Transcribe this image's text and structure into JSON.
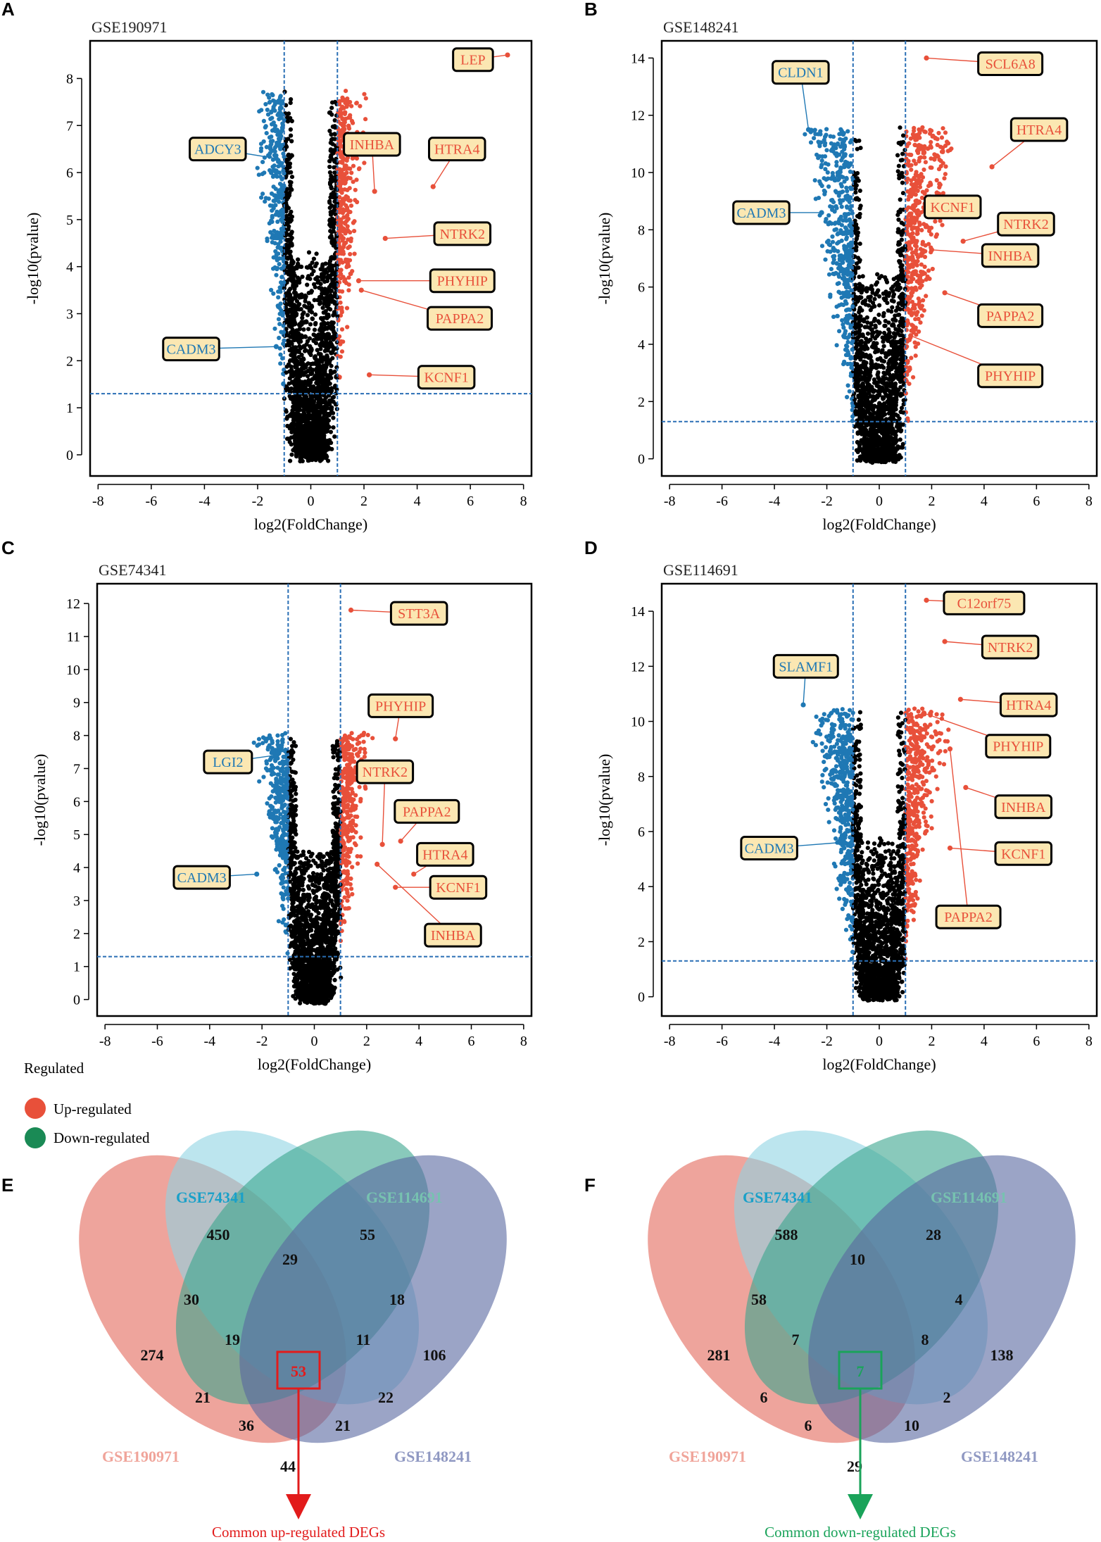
{
  "colors": {
    "up": "#e8503a",
    "down": "#1f78b4",
    "ns": "#000000",
    "threshold": "#2a6fb5",
    "label_fill": "#fbe7b2",
    "legend_up": "#e8503a",
    "legend_down": "#1a8a55",
    "arrow_up": "#e21b1b",
    "arrow_down": "#1aa35a"
  },
  "chart_data": [
    {
      "type": "scatter",
      "panel": "A",
      "title": "GSE190971",
      "xlabel": "log2(FoldChange)",
      "ylabel": "-log10(pvalue)",
      "xlim": [
        -8.3,
        8.3
      ],
      "ylim": [
        -0.45,
        8.8
      ],
      "xticks": [
        -8,
        -6,
        -4,
        -2,
        0,
        2,
        4,
        6,
        8
      ],
      "yticks": [
        0,
        1,
        2,
        3,
        4,
        5,
        6,
        7,
        8
      ],
      "thresholds": {
        "fc": [
          -1,
          1
        ],
        "p": 1.3
      },
      "cloud": {
        "ymax": 7.6,
        "seed": 11
      },
      "genes": [
        {
          "name": "LEP",
          "x": 7.4,
          "y": 8.5,
          "reg": "up",
          "lx": 6.1,
          "ly": 8.4
        },
        {
          "name": "INHBA",
          "x": 2.4,
          "y": 5.6,
          "reg": "up",
          "lx": 2.3,
          "ly": 6.6
        },
        {
          "name": "HTRA4",
          "x": 4.6,
          "y": 5.7,
          "reg": "up",
          "lx": 5.5,
          "ly": 6.5
        },
        {
          "name": "NTRK2",
          "x": 2.8,
          "y": 4.6,
          "reg": "up",
          "lx": 5.7,
          "ly": 4.7
        },
        {
          "name": "PHYHIP",
          "x": 1.8,
          "y": 3.7,
          "reg": "up",
          "lx": 5.7,
          "ly": 3.7
        },
        {
          "name": "PAPPA2",
          "x": 1.9,
          "y": 3.5,
          "reg": "up",
          "lx": 5.6,
          "ly": 2.9
        },
        {
          "name": "KCNF1",
          "x": 2.2,
          "y": 1.7,
          "reg": "up",
          "lx": 5.1,
          "ly": 1.65
        },
        {
          "name": "ADCY3",
          "x": -1.3,
          "y": 6.3,
          "reg": "down",
          "lx": -3.5,
          "ly": 6.5
        },
        {
          "name": "CADM3",
          "x": -1.3,
          "y": 2.3,
          "reg": "down",
          "lx": -4.5,
          "ly": 2.25
        }
      ]
    },
    {
      "type": "scatter",
      "panel": "B",
      "title": "GSE148241",
      "xlabel": "log2(FoldChange)",
      "ylabel": "-log10(pvalue)",
      "xlim": [
        -8.3,
        8.3
      ],
      "ylim": [
        -0.6,
        14.6
      ],
      "xticks": [
        -8,
        -6,
        -4,
        -2,
        0,
        2,
        4,
        6,
        8
      ],
      "yticks": [
        0,
        2,
        4,
        6,
        8,
        10,
        12,
        14
      ],
      "thresholds": {
        "fc": [
          -1,
          1
        ],
        "p": 1.3
      },
      "cloud": {
        "ymax": 11.5,
        "seed": 23
      },
      "genes": [
        {
          "name": "SCL6A8",
          "x": 1.8,
          "y": 14.0,
          "reg": "up",
          "lx": 5.0,
          "ly": 13.8
        },
        {
          "name": "HTRA4",
          "x": 4.3,
          "y": 10.2,
          "reg": "up",
          "lx": 6.1,
          "ly": 11.5
        },
        {
          "name": "KCNF1",
          "x": 1.9,
          "y": 8.5,
          "reg": "up",
          "lx": 2.8,
          "ly": 8.8
        },
        {
          "name": "NTRK2",
          "x": 3.2,
          "y": 7.6,
          "reg": "up",
          "lx": 5.6,
          "ly": 8.2
        },
        {
          "name": "INHBA",
          "x": 2.0,
          "y": 7.3,
          "reg": "up",
          "lx": 5.0,
          "ly": 7.1
        },
        {
          "name": "PAPPA2",
          "x": 2.5,
          "y": 5.8,
          "reg": "up",
          "lx": 5.0,
          "ly": 5.0
        },
        {
          "name": "PHYHIP",
          "x": 1.2,
          "y": 4.3,
          "reg": "up",
          "lx": 5.0,
          "ly": 2.9
        },
        {
          "name": "CLDN1",
          "x": -2.7,
          "y": 11.5,
          "reg": "down",
          "lx": -3.0,
          "ly": 13.5
        },
        {
          "name": "CADM3",
          "x": -2.2,
          "y": 8.6,
          "reg": "down",
          "lx": -4.5,
          "ly": 8.6
        }
      ]
    },
    {
      "type": "scatter",
      "panel": "C",
      "title": "GSE74341",
      "xlabel": "log2(FoldChange)",
      "ylabel": "-log10(pvalue)",
      "xlim": [
        -8.3,
        8.3
      ],
      "ylim": [
        -0.5,
        12.6
      ],
      "xticks": [
        -8,
        -6,
        -4,
        -2,
        0,
        2,
        4,
        6,
        8
      ],
      "yticks": [
        0,
        1,
        2,
        3,
        4,
        5,
        6,
        7,
        8,
        9,
        10,
        11,
        12
      ],
      "thresholds": {
        "fc": [
          -1,
          1
        ],
        "p": 1.3
      },
      "cloud": {
        "ymax": 8.0,
        "seed": 37
      },
      "genes": [
        {
          "name": "STT3A",
          "x": 1.4,
          "y": 11.8,
          "reg": "up",
          "lx": 4.0,
          "ly": 11.7
        },
        {
          "name": "PHYHIP",
          "x": 3.1,
          "y": 7.9,
          "reg": "up",
          "lx": 3.3,
          "ly": 8.9
        },
        {
          "name": "NTRK2",
          "x": 2.6,
          "y": 4.7,
          "reg": "up",
          "lx": 2.7,
          "ly": 6.9
        },
        {
          "name": "PAPPA2",
          "x": 3.3,
          "y": 4.8,
          "reg": "up",
          "lx": 4.3,
          "ly": 5.7
        },
        {
          "name": "HTRA4",
          "x": 3.8,
          "y": 3.8,
          "reg": "up",
          "lx": 5.0,
          "ly": 4.4
        },
        {
          "name": "KCNF1",
          "x": 3.1,
          "y": 3.4,
          "reg": "up",
          "lx": 5.5,
          "ly": 3.4
        },
        {
          "name": "INHBA",
          "x": 2.4,
          "y": 4.1,
          "reg": "up",
          "lx": 5.3,
          "ly": 1.95
        },
        {
          "name": "LGI2",
          "x": -1.5,
          "y": 7.4,
          "reg": "down",
          "lx": -3.3,
          "ly": 7.2
        },
        {
          "name": "CADM3",
          "x": -2.2,
          "y": 3.8,
          "reg": "down",
          "lx": -4.3,
          "ly": 3.7
        }
      ]
    },
    {
      "type": "scatter",
      "panel": "D",
      "title": "GSE114691",
      "xlabel": "log2(FoldChange)",
      "ylabel": "-log10(pvalue)",
      "xlim": [
        -8.3,
        8.3
      ],
      "ylim": [
        -0.7,
        15.0
      ],
      "xticks": [
        -8,
        -6,
        -4,
        -2,
        0,
        2,
        4,
        6,
        8
      ],
      "yticks": [
        0,
        2,
        4,
        6,
        8,
        10,
        12,
        14
      ],
      "thresholds": {
        "fc": [
          -1,
          1
        ],
        "p": 1.3
      },
      "cloud": {
        "ymax": 10.4,
        "seed": 53
      },
      "genes": [
        {
          "name": "C12orf75",
          "x": 1.8,
          "y": 14.4,
          "reg": "up",
          "lx": 4.0,
          "ly": 14.3
        },
        {
          "name": "NTRK2",
          "x": 2.5,
          "y": 12.9,
          "reg": "up",
          "lx": 5.0,
          "ly": 12.7
        },
        {
          "name": "HTRA4",
          "x": 3.1,
          "y": 10.8,
          "reg": "up",
          "lx": 5.7,
          "ly": 10.6
        },
        {
          "name": "PHYHIP",
          "x": 1.7,
          "y": 10.3,
          "reg": "up",
          "lx": 5.3,
          "ly": 9.1
        },
        {
          "name": "INHBA",
          "x": 3.3,
          "y": 7.6,
          "reg": "up",
          "lx": 5.5,
          "ly": 6.9
        },
        {
          "name": "KCNF1",
          "x": 2.7,
          "y": 5.4,
          "reg": "up",
          "lx": 5.5,
          "ly": 5.2
        },
        {
          "name": "PAPPA2",
          "x": 2.7,
          "y": 9.0,
          "reg": "up",
          "lx": 3.4,
          "ly": 2.9
        },
        {
          "name": "SLAMF1",
          "x": -2.9,
          "y": 10.6,
          "reg": "down",
          "lx": -2.8,
          "ly": 12.0
        },
        {
          "name": "CADM3",
          "x": -1.5,
          "y": 5.6,
          "reg": "down",
          "lx": -4.2,
          "ly": 5.4
        }
      ]
    }
  ],
  "legend": {
    "title": "Regulated",
    "items": [
      {
        "label": "Up-regulated"
      },
      {
        "label": "Down-regulated"
      }
    ]
  },
  "venns": [
    {
      "panel": "E",
      "sets": [
        "GSE74341",
        "GSE114691",
        "GSE190971",
        "GSE148241"
      ],
      "regions": {
        "only74341": "450",
        "only114691": "55",
        "only190971": "274",
        "only148241": "106",
        "r74_114": "29",
        "r74_190": "30",
        "r114_148": "18",
        "r74_114_190": "19",
        "r74_114_148": "11",
        "all": "53",
        "r190_148_114": "22",
        "r190_114": "21",
        "r190_148_74": "36",
        "r190_148_74b": "21",
        "r190_148": "44"
      },
      "caption": "Common up-regulated DEGs"
    },
    {
      "panel": "F",
      "sets": [
        "GSE74341",
        "GSE114691",
        "GSE190971",
        "GSE148241"
      ],
      "regions": {
        "only74341": "588",
        "only114691": "28",
        "only190971": "281",
        "only148241": "138",
        "r74_114": "10",
        "r74_190": "58",
        "r114_148": "4",
        "r74_114_190": "7",
        "r74_114_148": "8",
        "all": "7",
        "r190_148_114": "2",
        "r190_114": "6",
        "r190_148_74": "6",
        "r190_148_74b": "10",
        "r190_148": "29"
      },
      "caption": "Common down-regulated DEGs"
    }
  ]
}
